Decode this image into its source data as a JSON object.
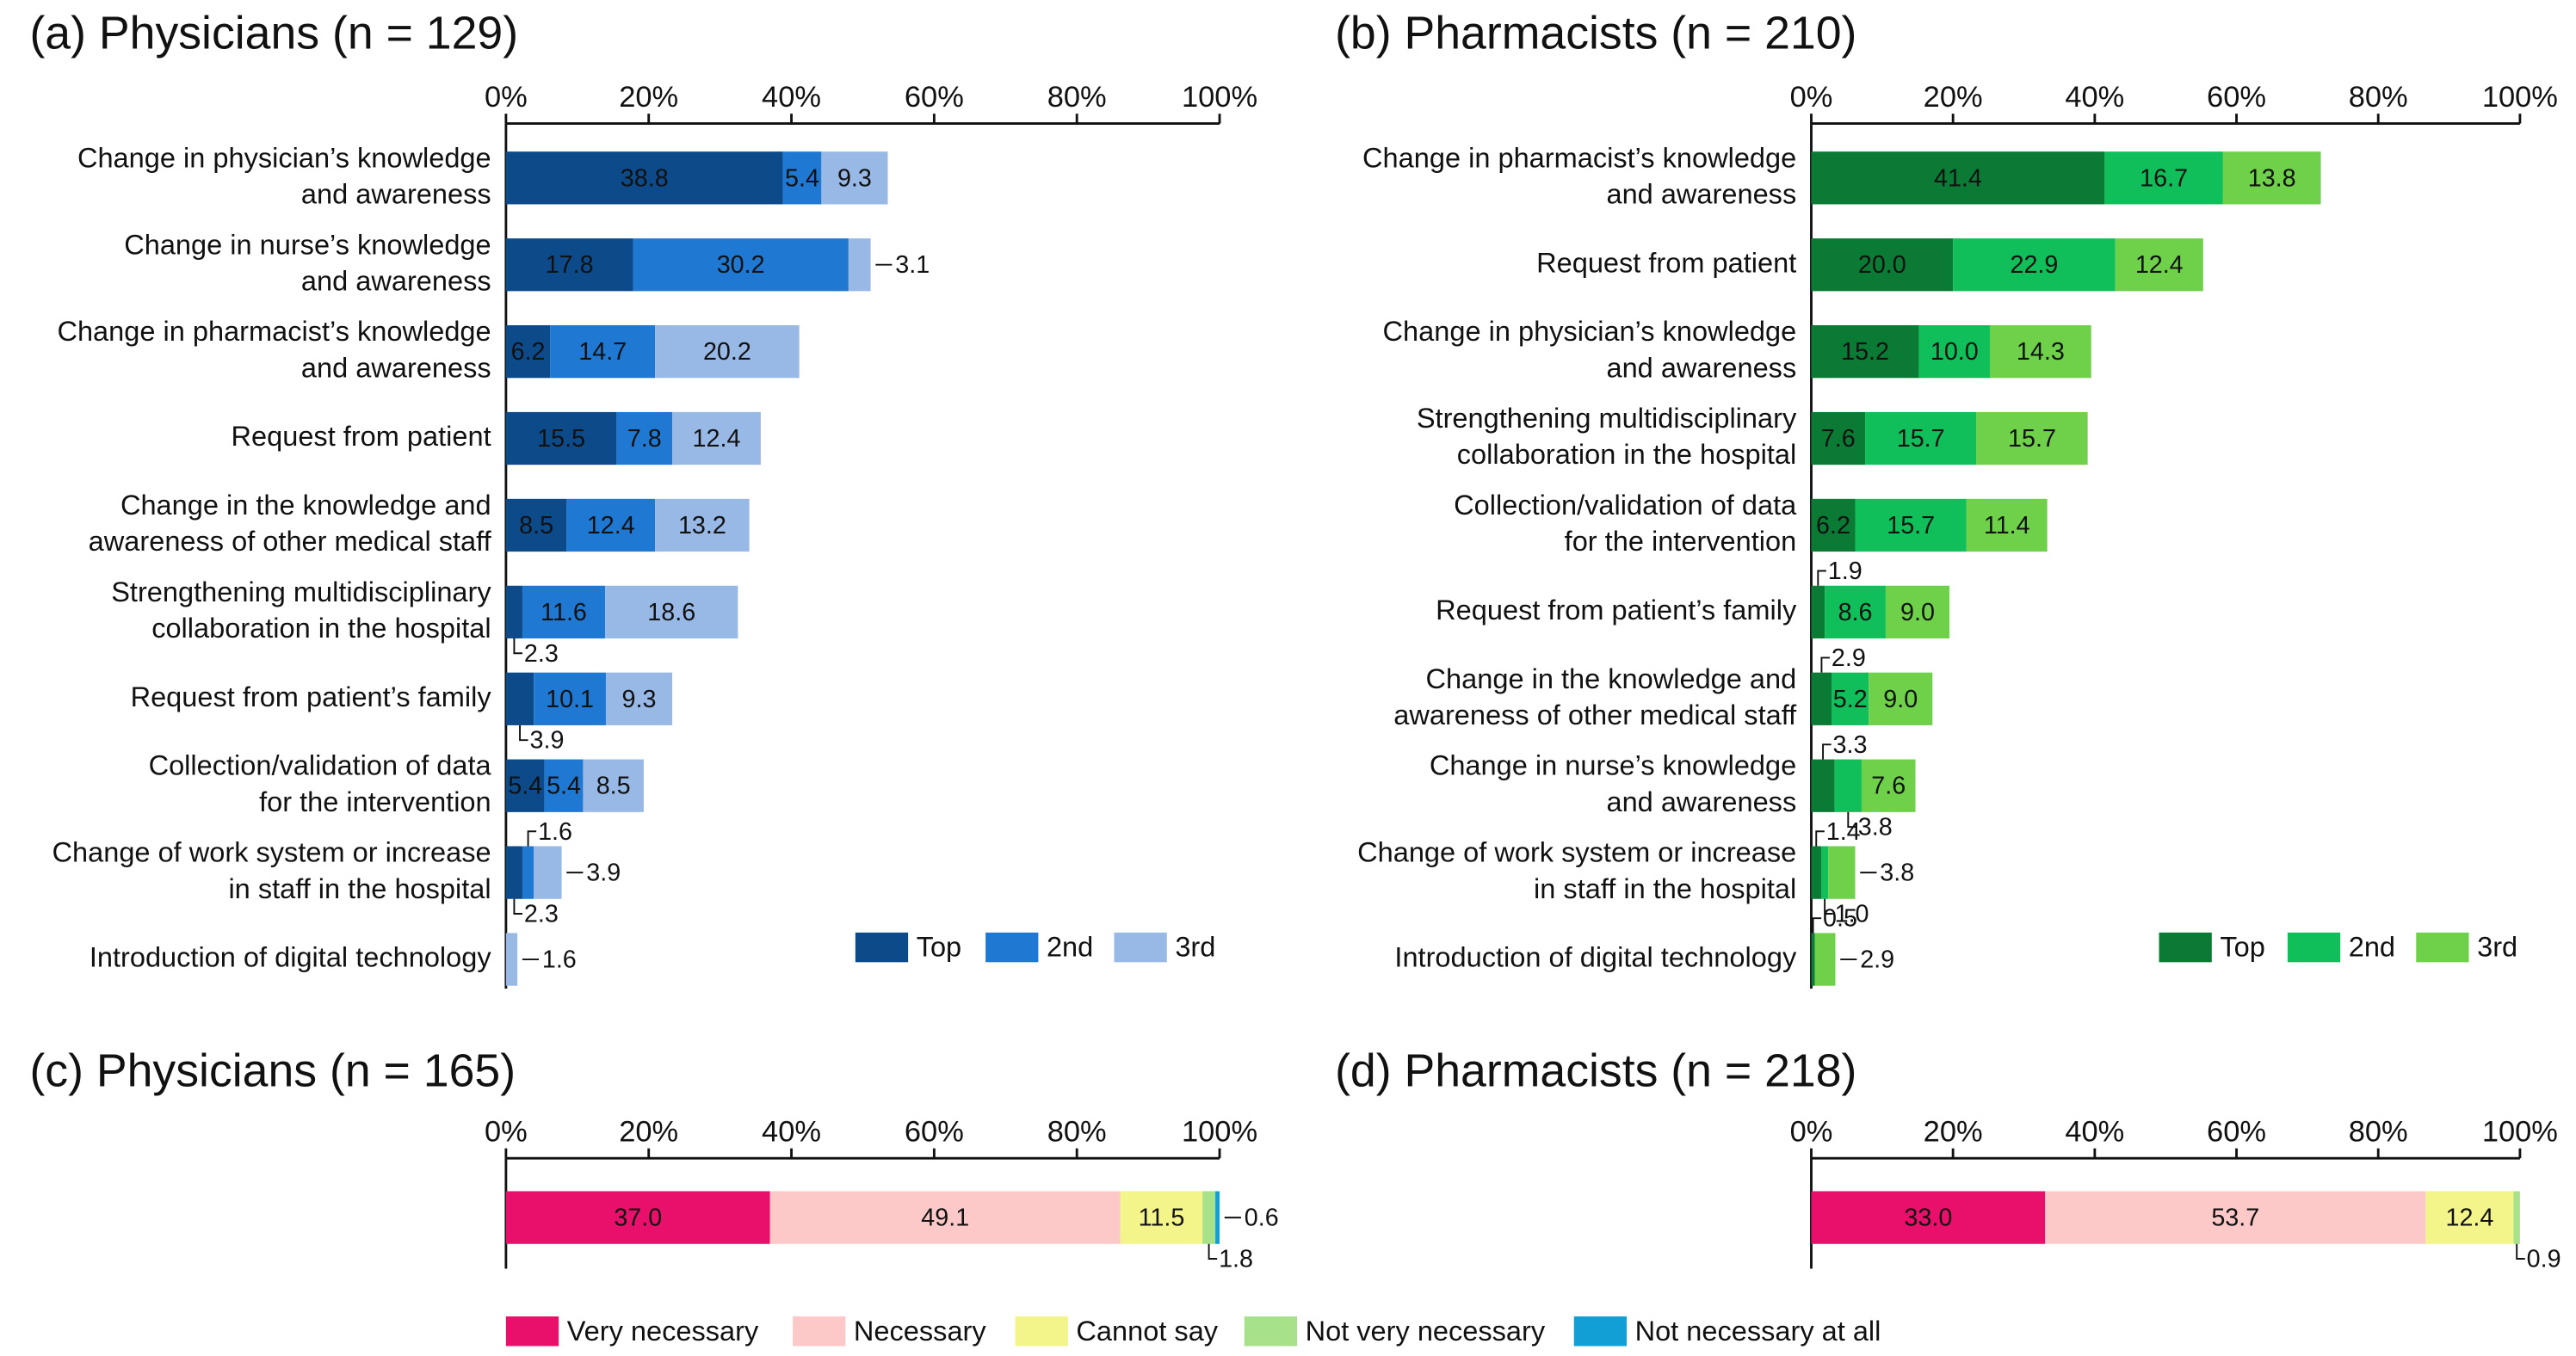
{
  "chart_data": [
    {
      "type": "bar",
      "orientation": "horizontal",
      "stacked": true,
      "title": "(a) Physicians (n = 129)",
      "categories": [
        [
          "Change in physician’s knowledge",
          "and awareness"
        ],
        [
          "Change in nurse’s knowledge",
          "and awareness"
        ],
        [
          "Change in pharmacist’s knowledge",
          "and awareness"
        ],
        [
          "Request from patient"
        ],
        [
          "Change in the knowledge and",
          "awareness of other medical staff"
        ],
        [
          "Strengthening multidisciplinary",
          "collaboration in the hospital"
        ],
        [
          "Request from patient’s family"
        ],
        [
          "Collection/validation of data",
          "for the intervention"
        ],
        [
          "Change of work system or increase",
          "in staff in the hospital"
        ],
        [
          "Introduction of digital technology"
        ]
      ],
      "series": [
        {
          "name": "Top",
          "color": "#0d4a8a",
          "values": [
            38.8,
            17.8,
            6.2,
            15.5,
            8.5,
            2.3,
            3.9,
            5.4,
            2.3,
            0
          ],
          "value_labels": [
            "38.8",
            "17.8",
            "6.2",
            "15.5",
            "8.5",
            "2.3",
            "3.9",
            "5.4",
            "2.3",
            null
          ]
        },
        {
          "name": "2nd",
          "color": "#1f78d1",
          "values": [
            5.4,
            30.2,
            14.7,
            7.8,
            12.4,
            11.6,
            10.1,
            5.4,
            1.6,
            0
          ],
          "value_labels": [
            "5.4",
            "30.2",
            "14.7",
            "7.8",
            "12.4",
            "11.6",
            "10.1",
            "5.4",
            "1.6",
            null
          ]
        },
        {
          "name": "3rd",
          "color": "#98b8e6",
          "values": [
            9.3,
            3.1,
            20.2,
            12.4,
            13.2,
            18.6,
            9.3,
            8.5,
            3.9,
            1.6
          ],
          "value_labels": [
            "9.3",
            "3.1",
            "20.2",
            "12.4",
            "13.2",
            "18.6",
            "9.3",
            "8.5",
            "3.9",
            "1.6"
          ]
        }
      ],
      "xlim": [
        0,
        100
      ],
      "xticks": [
        {
          "value": 0,
          "label": "0%"
        },
        {
          "value": 20,
          "label": "20%"
        },
        {
          "value": 40,
          "label": "40%"
        },
        {
          "value": 60,
          "label": "60%"
        },
        {
          "value": 80,
          "label": "80%"
        },
        {
          "value": 100,
          "label": "100%"
        }
      ],
      "legend": "lower right"
    },
    {
      "type": "bar",
      "orientation": "horizontal",
      "stacked": true,
      "title": "(b) Pharmacists (n = 210)",
      "categories": [
        [
          "Change in pharmacist’s knowledge",
          "and awareness"
        ],
        [
          "Request from patient"
        ],
        [
          "Change in physician’s knowledge",
          "and awareness"
        ],
        [
          "Strengthening multidisciplinary",
          "collaboration in the hospital"
        ],
        [
          "Collection/validation of data",
          "for the intervention"
        ],
        [
          "Request from patient’s family"
        ],
        [
          "Change in the knowledge and",
          "awareness of other medical staff"
        ],
        [
          "Change in nurse’s knowledge",
          "and awareness"
        ],
        [
          "Change of work system or increase",
          "in staff in the hospital"
        ],
        [
          "Introduction of digital technology"
        ]
      ],
      "series": [
        {
          "name": "Top",
          "color": "#0a7a35",
          "values": [
            41.4,
            20.0,
            15.2,
            7.6,
            6.2,
            1.9,
            2.9,
            3.3,
            1.4,
            0.5
          ],
          "value_labels": [
            "41.4",
            "20.0",
            "15.2",
            "7.6",
            "6.2",
            "1.9",
            "2.9",
            "3.3",
            "1.4",
            "0.5"
          ]
        },
        {
          "name": "2nd",
          "color": "#10bf5a",
          "values": [
            16.7,
            22.9,
            10.0,
            15.7,
            15.7,
            8.6,
            5.2,
            3.8,
            1.0,
            0
          ],
          "value_labels": [
            "16.7",
            "22.9",
            "10.0",
            "15.7",
            "15.7",
            "8.6",
            "5.2",
            "3.8",
            "1.0",
            null
          ]
        },
        {
          "name": "3rd",
          "color": "#6fd14a",
          "values": [
            13.8,
            12.4,
            14.3,
            15.7,
            11.4,
            9.0,
            9.0,
            7.6,
            3.8,
            2.9
          ],
          "value_labels": [
            "13.8",
            "12.4",
            "14.3",
            "15.7",
            "11.4",
            "9.0",
            "9.0",
            "7.6",
            "3.8",
            "2.9"
          ]
        }
      ],
      "xlim": [
        0,
        100
      ],
      "xticks": [
        {
          "value": 0,
          "label": "0%"
        },
        {
          "value": 20,
          "label": "20%"
        },
        {
          "value": 40,
          "label": "40%"
        },
        {
          "value": 60,
          "label": "60%"
        },
        {
          "value": 80,
          "label": "80%"
        },
        {
          "value": 100,
          "label": "100%"
        }
      ],
      "legend": "lower right"
    },
    {
      "type": "bar",
      "orientation": "horizontal",
      "stacked": true,
      "title": "(c) Physicians (n = 165)",
      "categories": [
        null
      ],
      "series": [
        {
          "name": "Very necessary",
          "color": "#e8106a",
          "values": [
            37.0
          ],
          "value_labels": [
            "37.0"
          ]
        },
        {
          "name": "Necessary",
          "color": "#fcc8c8",
          "values": [
            49.1
          ],
          "value_labels": [
            "49.1"
          ]
        },
        {
          "name": "Cannot say",
          "color": "#f3f58a",
          "values": [
            11.5
          ],
          "value_labels": [
            "11.5"
          ]
        },
        {
          "name": "Not very necessary",
          "color": "#a7e28a",
          "values": [
            1.8
          ],
          "value_labels": [
            "1.8"
          ]
        },
        {
          "name": "Not necessary at all",
          "color": "#129fd6",
          "values": [
            0.6
          ],
          "value_labels": [
            "0.6"
          ]
        }
      ],
      "xlim": [
        0,
        100
      ],
      "xticks": [
        {
          "value": 0,
          "label": "0%"
        },
        {
          "value": 20,
          "label": "20%"
        },
        {
          "value": 40,
          "label": "40%"
        },
        {
          "value": 60,
          "label": "60%"
        },
        {
          "value": 80,
          "label": "80%"
        },
        {
          "value": 100,
          "label": "100%"
        }
      ],
      "legend": "bottom"
    },
    {
      "type": "bar",
      "orientation": "horizontal",
      "stacked": true,
      "title": "(d) Pharmacists (n = 218)",
      "categories": [
        null
      ],
      "series": [
        {
          "color": "#e8106a",
          "values": [
            33.0
          ],
          "value_labels": [
            "33.0"
          ]
        },
        {
          "color": "#fcc8c8",
          "values": [
            53.7
          ],
          "value_labels": [
            "53.7"
          ]
        },
        {
          "color": "#f3f58a",
          "values": [
            12.4
          ],
          "value_labels": [
            "12.4"
          ]
        },
        {
          "color": "#a7e28a",
          "values": [
            0.9
          ],
          "value_labels": [
            "0.9"
          ]
        },
        {
          "color": "#129fd6",
          "values": [
            0
          ],
          "value_labels": [
            null
          ]
        }
      ],
      "xlim": [
        0,
        100
      ],
      "xticks": [
        {
          "value": 0,
          "label": "0%"
        },
        {
          "value": 20,
          "label": "20%"
        },
        {
          "value": 40,
          "label": "40%"
        },
        {
          "value": 60,
          "label": "60%"
        },
        {
          "value": 80,
          "label": "80%"
        },
        {
          "value": 100,
          "label": "100%"
        }
      ]
    }
  ]
}
